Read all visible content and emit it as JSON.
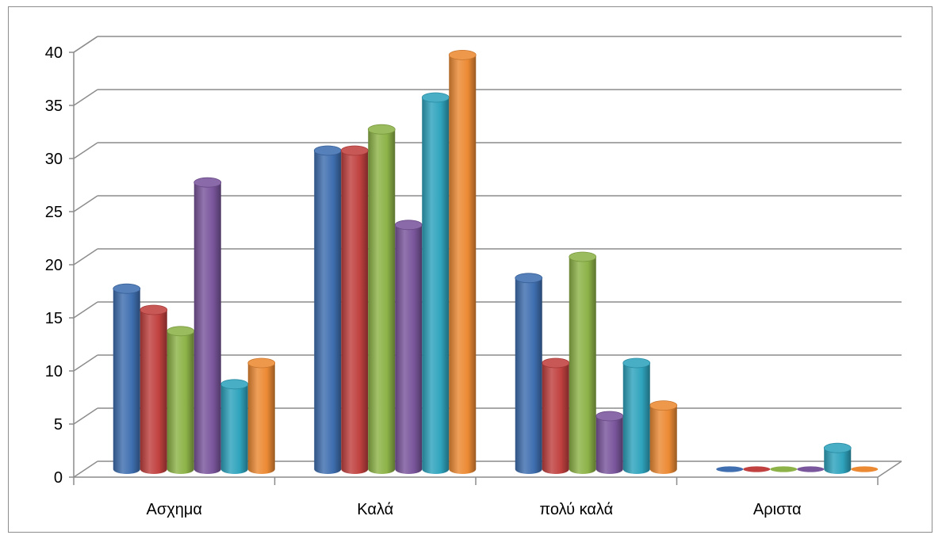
{
  "chart_data": {
    "type": "bar",
    "title": "",
    "xlabel": "",
    "ylabel": "",
    "categories": [
      "Ασχημα",
      "Καλά",
      "πολύ καλά",
      "Αριστα"
    ],
    "series": [
      {
        "values": [
          17,
          30,
          18,
          0
        ],
        "color": "#3f6fb0"
      },
      {
        "values": [
          15,
          30,
          10,
          0
        ],
        "color": "#c0413f"
      },
      {
        "values": [
          13,
          32,
          20,
          0
        ],
        "color": "#8db348"
      },
      {
        "values": [
          27,
          23,
          5,
          0
        ],
        "color": "#7a569c"
      },
      {
        "values": [
          8,
          35,
          10,
          2
        ],
        "color": "#2fa3bd"
      },
      {
        "values": [
          10,
          39,
          6,
          0
        ],
        "color": "#ec8a34"
      }
    ],
    "ylim": [
      0,
      40
    ],
    "yticks": [
      "0",
      "5",
      "10",
      "15",
      "20",
      "25",
      "30",
      "35",
      "40"
    ],
    "grid": true,
    "legend": "none",
    "style": "3d-cylinder"
  }
}
